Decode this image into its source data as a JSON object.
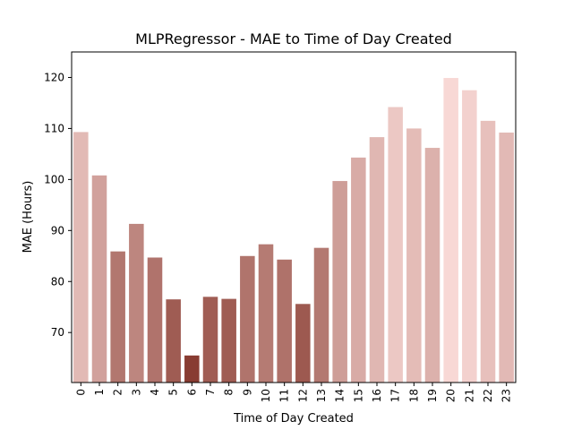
{
  "chart_data": {
    "type": "bar",
    "title": "MLPRegressor - MAE to Time of Day Created",
    "xlabel": "Time of Day Created",
    "ylabel": "MAE (Hours)",
    "ylim": [
      60.2,
      125
    ],
    "yticks": [
      70,
      80,
      90,
      100,
      110,
      120
    ],
    "categories": [
      "0",
      "1",
      "2",
      "3",
      "4",
      "5",
      "6",
      "7",
      "8",
      "9",
      "10",
      "11",
      "12",
      "13",
      "14",
      "15",
      "16",
      "17",
      "18",
      "19",
      "20",
      "21",
      "22",
      "23"
    ],
    "values": [
      109.3,
      100.8,
      85.9,
      91.3,
      84.7,
      76.5,
      65.5,
      77.0,
      76.6,
      85.0,
      87.3,
      84.3,
      75.6,
      86.6,
      99.7,
      104.3,
      108.3,
      114.2,
      110.0,
      106.2,
      119.9,
      117.5,
      111.5,
      109.2
    ],
    "color_scale": {
      "low": "#883c32",
      "high": "#f8d8d5"
    },
    "grid": false,
    "legend": "none"
  }
}
